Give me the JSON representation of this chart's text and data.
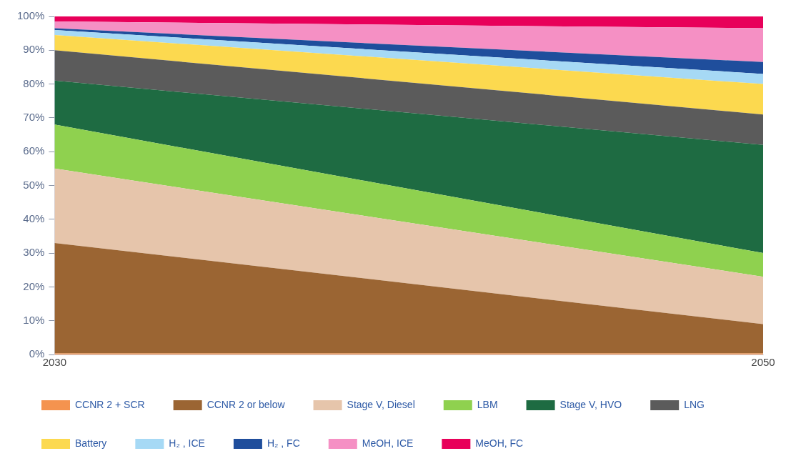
{
  "chart_data": {
    "type": "area",
    "stacked": true,
    "x": [
      2030,
      2050
    ],
    "xlim": [
      2030,
      2050
    ],
    "xticks": [
      2030,
      2050
    ],
    "ylim": [
      0,
      100
    ],
    "yticks": [
      {
        "value": 0,
        "label": "0%"
      },
      {
        "value": 10,
        "label": "10%"
      },
      {
        "value": 20,
        "label": "20%"
      },
      {
        "value": 30,
        "label": "30%"
      },
      {
        "value": 40,
        "label": "40%"
      },
      {
        "value": 50,
        "label": "50%"
      },
      {
        "value": 60,
        "label": "60%"
      },
      {
        "value": 70,
        "label": "70%"
      },
      {
        "value": 80,
        "label": "80%"
      },
      {
        "value": 90,
        "label": "90%"
      },
      {
        "value": 100,
        "label": "100%"
      }
    ],
    "grid": false,
    "legend": "bottom",
    "series": [
      {
        "name": "CCNR 2 + SCR",
        "color": "#f4934f",
        "values": [
          0.3,
          0.3
        ]
      },
      {
        "name": "CCNR 2 or below",
        "color": "#9b6533",
        "values": [
          32.7,
          8.7
        ]
      },
      {
        "name": "Stage V, Diesel",
        "color": "#e6c5ab",
        "values": [
          22,
          14
        ]
      },
      {
        "name": "LBM",
        "color": "#8fd14f",
        "values": [
          13,
          7
        ]
      },
      {
        "name": "Stage V, HVO",
        "color": "#1e6b42",
        "values": [
          13,
          32
        ]
      },
      {
        "name": "LNG",
        "color": "#5b5b5b",
        "values": [
          9,
          9
        ]
      },
      {
        "name": "Battery",
        "color": "#fcd94f",
        "values": [
          4.5,
          9
        ]
      },
      {
        "name": "H₂ , ICE",
        "color": "#a6d9f5",
        "values": [
          1.5,
          3
        ]
      },
      {
        "name": "H₂ , FC",
        "color": "#1f4e9c",
        "values": [
          0.5,
          3.5
        ]
      },
      {
        "name": "MeOH, ICE",
        "color": "#f590c4",
        "values": [
          2,
          10
        ]
      },
      {
        "name": "MeOH, FC",
        "color": "#e8005a",
        "values": [
          1.5,
          3.5
        ]
      }
    ]
  }
}
